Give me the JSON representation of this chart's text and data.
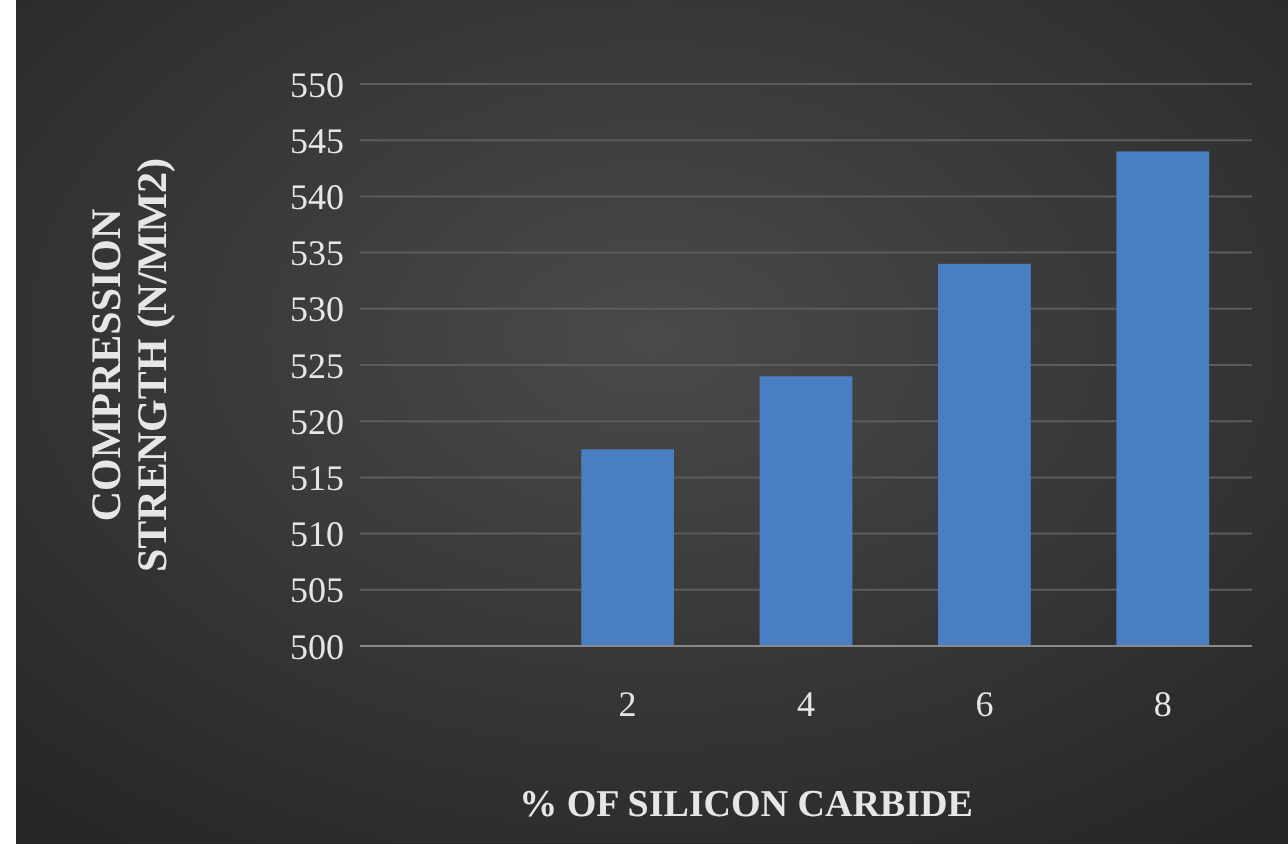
{
  "chart_data": {
    "type": "bar",
    "xlabel": "% OF SILICON CARBIDE",
    "ylabel": "COMPRESSION STRENGTH (N/MM2)",
    "categories": [
      null,
      "2",
      "4",
      "6",
      "8"
    ],
    "values": [
      null,
      517.5,
      524,
      534,
      544
    ],
    "color": "#4a7ec2",
    "ylim": [
      500,
      550
    ],
    "yticks": [
      500,
      505,
      510,
      515,
      520,
      525,
      530,
      535,
      540,
      545,
      550
    ],
    "grid": "y"
  }
}
